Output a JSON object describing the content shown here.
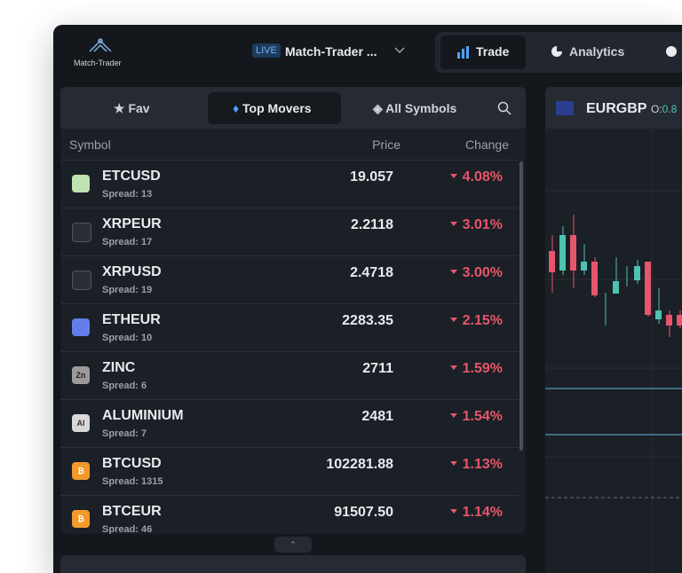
{
  "header": {
    "logo": "Match-Trader",
    "account_badge": "LIVE",
    "account_name": "Match-Trader ...",
    "nav": [
      "Trade",
      "Analytics"
    ]
  },
  "watchlist": {
    "tabs": [
      "Fav",
      "Top Movers",
      "All Symbols"
    ],
    "columns": [
      "Symbol",
      "Price",
      "Change"
    ],
    "rows": [
      {
        "symbol": "ETCUSD",
        "spread": "Spread: 13",
        "price": "19.057",
        "change": "4.08%"
      },
      {
        "symbol": "XRPEUR",
        "spread": "Spread: 17",
        "price": "2.2118",
        "change": "3.01%"
      },
      {
        "symbol": "XRPUSD",
        "spread": "Spread: 19",
        "price": "2.4718",
        "change": "3.00%"
      },
      {
        "symbol": "ETHEUR",
        "spread": "Spread: 10",
        "price": "2283.35",
        "change": "2.15%"
      },
      {
        "symbol": "ZINC",
        "icon": "Zn",
        "spread": "Spread: 6",
        "price": "2711",
        "change": "1.59%"
      },
      {
        "symbol": "ALUMINIUM",
        "icon": "Al",
        "spread": "Spread: 7",
        "price": "2481",
        "change": "1.54%"
      },
      {
        "symbol": "BTCUSD",
        "icon": "₿",
        "spread": "Spread: 1315",
        "price": "102281.88",
        "change": "1.13%"
      },
      {
        "symbol": "BTCEUR",
        "icon": "₿",
        "spread": "Spread: 46",
        "price": "91507.50",
        "change": "1.14%"
      }
    ]
  },
  "chart": {
    "symbol": "EURGBP",
    "open_label": "O:",
    "open_value": "0.8"
  }
}
